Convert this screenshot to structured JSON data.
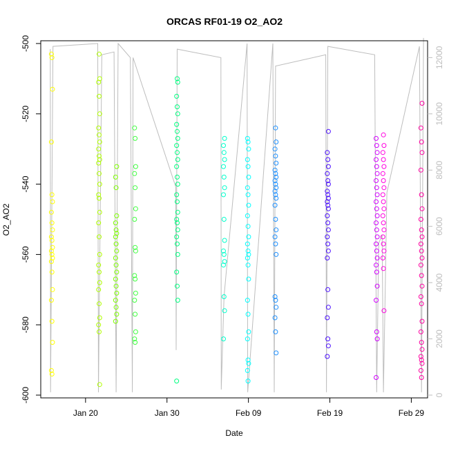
{
  "chart_data": {
    "type": "scatter",
    "title": "ORCAS RF01-19 O2_AO2",
    "xlabel": "Date",
    "ylabel": "O2_AO2",
    "x_range": [
      "2016-01-14T12:00",
      "2016-03-02T00:00"
    ],
    "ylim": [
      -600,
      -500
    ],
    "y2lim": [
      0,
      12500
    ],
    "grid": false,
    "x_ticks": [
      {
        "date": "2016-01-20",
        "label": "Jan 20"
      },
      {
        "date": "2016-01-30",
        "label": "Jan 30"
      },
      {
        "date": "2016-02-09",
        "label": "Feb 09"
      },
      {
        "date": "2016-02-19",
        "label": "Feb 19"
      },
      {
        "date": "2016-02-29",
        "label": "Feb 29"
      }
    ],
    "y_ticks": [
      -600,
      -580,
      -560,
      -540,
      -520,
      -500
    ],
    "y2_ticks": [
      0,
      2000,
      4000,
      6000,
      8000,
      10000,
      12000
    ],
    "altitude_trace": {
      "color": "#bdbdbd",
      "points": [
        [
          "2016-01-15T16:00",
          12300
        ],
        [
          "2016-01-15T17:00",
          100
        ],
        [
          "2016-01-16T00:00",
          12400
        ],
        [
          "2016-01-21T12:00",
          12500
        ],
        [
          "2016-01-21T14:00",
          100
        ],
        [
          "2016-01-22T00:00",
          12100
        ],
        [
          "2016-01-23T12:00",
          12200
        ],
        [
          "2016-01-23T18:00",
          100
        ],
        [
          "2016-01-24T00:00",
          12500
        ],
        [
          "2016-01-25T12:00",
          12000
        ],
        [
          "2016-01-25T18:00",
          100
        ],
        [
          "2016-01-25T20:00",
          12000
        ],
        [
          "2016-01-31T02:00",
          7400
        ],
        [
          "2016-01-31T03:00",
          1600
        ],
        [
          "2016-01-31T06:00",
          12300
        ],
        [
          "2016-02-05T15:00",
          12000
        ],
        [
          "2016-02-05T16:00",
          200
        ],
        [
          "2016-02-06T00:00",
          3500
        ],
        [
          "2016-02-08T20:00",
          12500
        ],
        [
          "2016-02-08T22:00",
          100
        ],
        [
          "2016-02-12T00:00",
          12500
        ],
        [
          "2016-02-12T04:00",
          100
        ],
        [
          "2016-02-12T08:00",
          11700
        ],
        [
          "2016-02-18T12:00",
          12100
        ],
        [
          "2016-02-18T14:00",
          100
        ],
        [
          "2016-02-18T18:00",
          12400
        ],
        [
          "2016-02-24T12:00",
          12100
        ],
        [
          "2016-02-24T18:00",
          100
        ],
        [
          "2016-02-25T00:00",
          5400
        ],
        [
          "2016-02-25T10:00",
          5700
        ],
        [
          "2016-02-25T14:00",
          100
        ],
        [
          "2016-02-26T00:00",
          7200
        ],
        [
          "2016-03-01T00:00",
          12400
        ],
        [
          "2016-03-01T06:00",
          100
        ],
        [
          "2016-03-01T12:00",
          12700
        ]
      ]
    },
    "series": [
      {
        "flight": "RF01",
        "color": "#FFFF00",
        "x": "2016-01-15T21:00",
        "values": [
          -503,
          -504,
          -513,
          -528,
          -543,
          -545,
          -548,
          -551,
          -553,
          -555,
          -556,
          -558,
          -559,
          -560,
          -561,
          -562,
          -565,
          -570,
          -573,
          -579,
          -585,
          -593,
          -594
        ]
      },
      {
        "flight": "RF02",
        "color": "#B0FF00",
        "x": "2016-01-21T16:00",
        "values": [
          -503,
          -510,
          -511,
          -515,
          -520,
          -524,
          -526,
          -528,
          -530,
          -532,
          -533,
          -534,
          -537,
          -540,
          -543,
          -544,
          -548,
          -551,
          -555,
          -560,
          -563,
          -565,
          -568,
          -570,
          -574,
          -578,
          -580,
          -582,
          -597
        ]
      },
      {
        "flight": "RF03",
        "color": "#7FFF00",
        "x": "2016-01-23T18:00",
        "values": [
          -535,
          -538,
          -541,
          -549,
          -551,
          -553,
          -554,
          -555,
          -557,
          -559,
          -561,
          -563,
          -565,
          -567,
          -569,
          -571,
          -573,
          -575,
          -577,
          -579
        ]
      },
      {
        "flight": "RF04",
        "color": "#40FF40",
        "x": "2016-01-26T02:00",
        "values": [
          -524,
          -527,
          -535,
          -537,
          -541,
          -547,
          -550,
          -558,
          -559,
          -566,
          -567,
          -571,
          -573,
          -577,
          -582,
          -584,
          -585
        ]
      },
      {
        "flight": "RF05",
        "color": "#00FF80",
        "x": "2016-01-31T06:00",
        "values": [
          -510,
          -511,
          -515,
          -518,
          -520,
          -523,
          -525,
          -527,
          -529,
          -531,
          -533,
          -535,
          -538,
          -540,
          -543,
          -545,
          -548,
          -550,
          -551,
          -553,
          -555,
          -557,
          -560,
          -565,
          -569,
          -573,
          -596
        ]
      },
      {
        "flight": "RF06",
        "color": "#00FFCC",
        "x": "2016-02-06T00:00",
        "values": [
          -527,
          -529,
          -531,
          -533,
          -535,
          -538,
          -541,
          -543,
          -550,
          -556,
          -559,
          -560,
          -562,
          -563,
          -572,
          -576,
          -584
        ]
      },
      {
        "flight": "RF07",
        "color": "#00FFFF",
        "x": "2016-02-08T23:00",
        "values": [
          -527,
          -528,
          -530,
          -533,
          -535,
          -538,
          -541,
          -543,
          -546,
          -549,
          -552,
          -555,
          -557,
          -559,
          -560,
          -561,
          -563,
          -567,
          -573,
          -577,
          -582,
          -584,
          -590,
          -591,
          -593,
          -596
        ]
      },
      {
        "flight": "RF08",
        "color": "#1E90FF",
        "x": "2016-02-12T08:00",
        "values": [
          -524,
          -528,
          -530,
          -532,
          -534,
          -536,
          -537,
          -538,
          -539,
          -540,
          -541,
          -542,
          -543,
          -544,
          -546,
          -550,
          -553,
          -555,
          -557,
          -560,
          -572,
          -573,
          -575,
          -578,
          -582,
          -588
        ]
      },
      {
        "flight": "RF09",
        "color": "#4B0FFF",
        "x": "2016-02-18T18:00",
        "values": [
          -525,
          -531,
          -533,
          -535,
          -537,
          -539,
          -540,
          -542,
          -543,
          -544,
          -545,
          -546,
          -547,
          -549,
          -551,
          -553,
          -555,
          -557,
          -559,
          -561,
          -570,
          -575,
          -578,
          -584,
          -586,
          -589
        ]
      },
      {
        "flight": "RF10",
        "color": "#D200FF",
        "x": "2016-02-24T18:00",
        "values": [
          -527,
          -529,
          -531,
          -533,
          -535,
          -537,
          -539,
          -541,
          -543,
          -545,
          -547,
          -549,
          -551,
          -553,
          -555,
          -557,
          -559,
          -561,
          -563,
          -565,
          -569,
          -573,
          -582,
          -584,
          -595
        ]
      },
      {
        "flight": "RF11",
        "color": "#FF00E0",
        "x": "2016-02-25T14:00",
        "values": [
          -526,
          -529,
          -531,
          -533,
          -535,
          -537,
          -539,
          -541,
          -543,
          -545,
          -547,
          -549,
          -551,
          -553,
          -555,
          -557,
          -559,
          -561,
          -564,
          -576
        ]
      },
      {
        "flight": "RF12",
        "color": "#FF00A0",
        "x": "2016-03-01T06:00",
        "values": [
          -517,
          -524,
          -528,
          -531,
          -536,
          -543,
          -547,
          -550,
          -553,
          -555,
          -557,
          -559,
          -561,
          -563,
          -566,
          -569,
          -572,
          -574,
          -579,
          -582,
          -585,
          -587,
          -589,
          -590,
          -591,
          -593,
          -595
        ]
      }
    ]
  }
}
